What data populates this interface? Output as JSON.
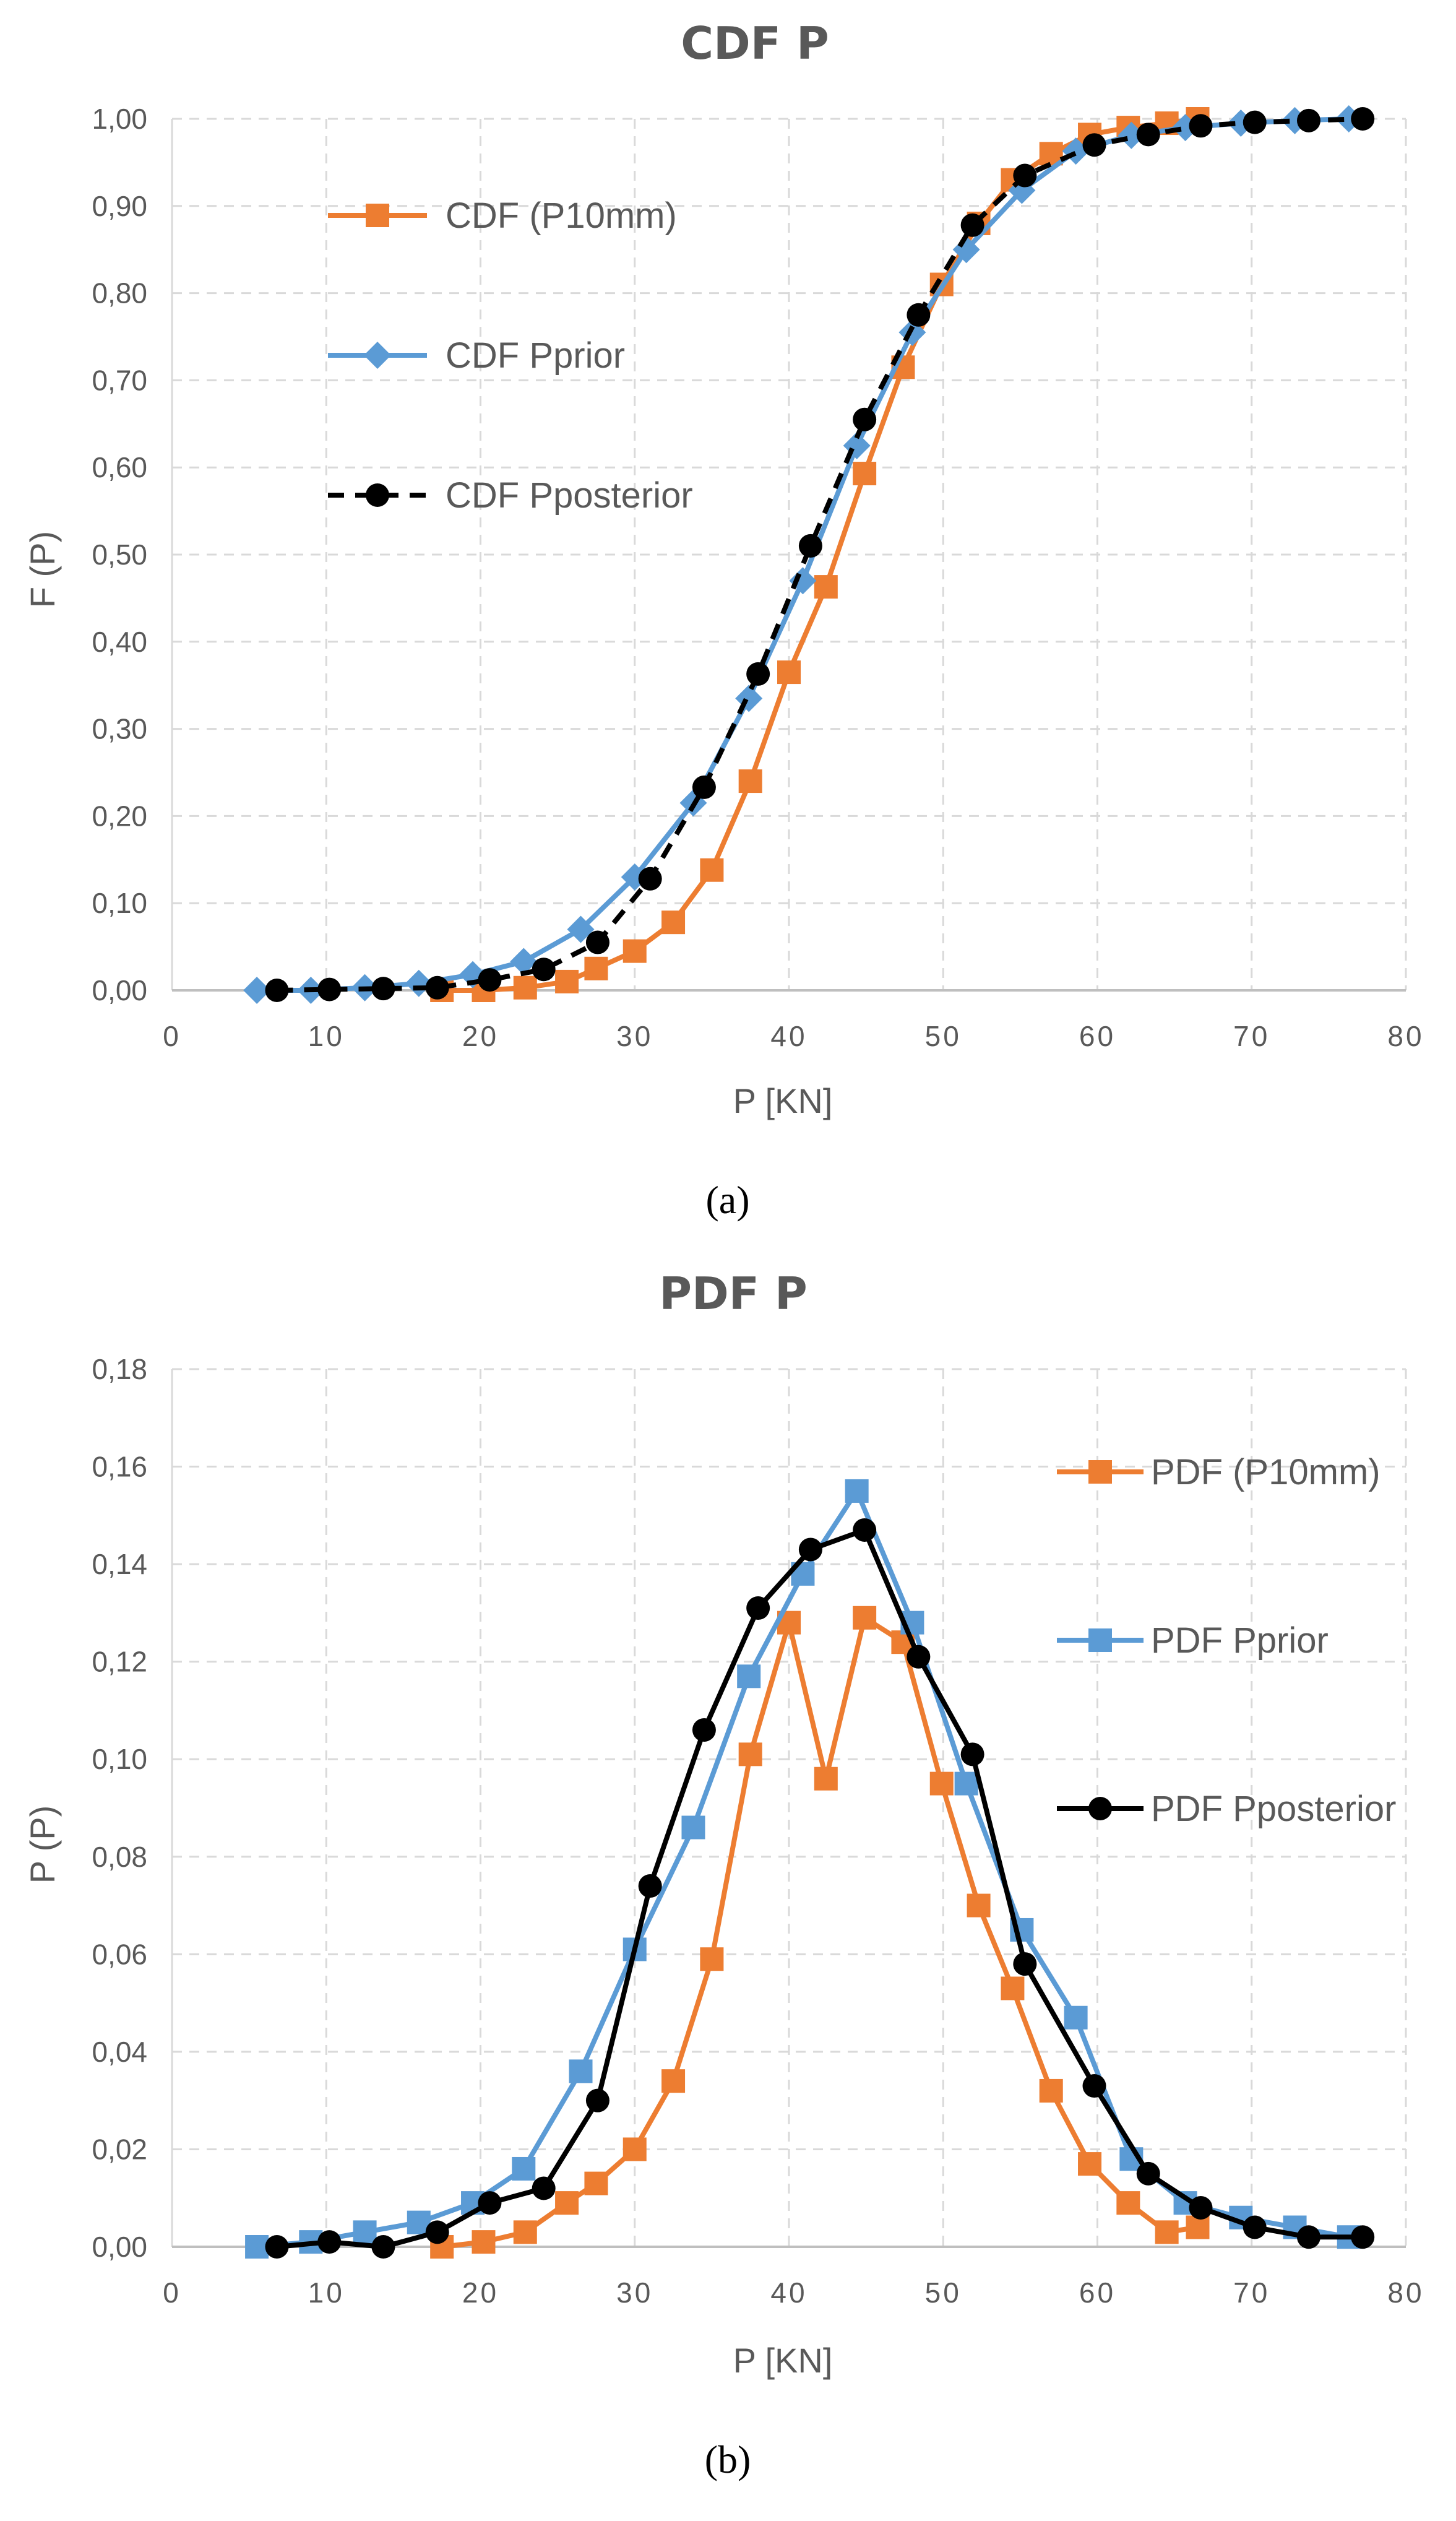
{
  "chart_data": [
    {
      "panel": "(a)",
      "type": "line",
      "title": "CDF P",
      "xlabel": "P [KN]",
      "ylabel": "F (P)",
      "xlim": [
        0,
        80
      ],
      "ylim": [
        0,
        1
      ],
      "x_ticks": [
        "0",
        "10",
        "20",
        "30",
        "40",
        "50",
        "60",
        "70",
        "80"
      ],
      "y_ticks": [
        "0,00",
        "0,10",
        "0,20",
        "0,30",
        "0,40",
        "0,50",
        "0,60",
        "0,70",
        "0,80",
        "0,90",
        "1,00"
      ],
      "grid": true,
      "legend_position": "upper-left",
      "series": [
        {
          "name": "CDF (P10mm)",
          "color": "#ED7D31",
          "marker": "square",
          "dash": "solid",
          "x": [
            17.5,
            20.2,
            22.9,
            25.6,
            27.5,
            30,
            32.5,
            35,
            37.5,
            40,
            42.4,
            44.9,
            47.4,
            49.9,
            52.3,
            54.5,
            57,
            59.5,
            62,
            64.5,
            66.5
          ],
          "y": [
            0.0,
            0.0,
            0.003,
            0.01,
            0.025,
            0.045,
            0.078,
            0.138,
            0.24,
            0.365,
            0.463,
            0.593,
            0.715,
            0.81,
            0.88,
            0.93,
            0.96,
            0.982,
            0.99,
            0.995,
            1.0
          ]
        },
        {
          "name": "CDF Pprior",
          "color": "#5B9BD5",
          "marker": "diamond",
          "dash": "solid",
          "x": [
            5.5,
            9,
            12.5,
            16,
            19.5,
            22.8,
            26.5,
            30,
            33.8,
            37.4,
            40.9,
            44.4,
            48,
            51.5,
            55.1,
            58.6,
            62.2,
            65.7,
            69.3,
            72.8,
            76.3
          ],
          "y": [
            0.0,
            0.0,
            0.003,
            0.008,
            0.018,
            0.033,
            0.07,
            0.13,
            0.215,
            0.335,
            0.47,
            0.625,
            0.755,
            0.85,
            0.918,
            0.963,
            0.981,
            0.99,
            0.995,
            0.998,
            1.0
          ]
        },
        {
          "name": "CDF Pposterior",
          "color": "#000000",
          "marker": "circle",
          "dash": "dashed",
          "x": [
            6.8,
            10.2,
            13.7,
            17.2,
            20.6,
            24.1,
            27.6,
            31,
            34.5,
            38,
            41.4,
            44.9,
            48.4,
            51.9,
            55.3,
            59.8,
            63.3,
            66.7,
            70.2,
            73.7,
            77.2
          ],
          "y": [
            0.0,
            0.001,
            0.002,
            0.003,
            0.012,
            0.024,
            0.055,
            0.128,
            0.233,
            0.363,
            0.51,
            0.655,
            0.775,
            0.878,
            0.935,
            0.97,
            0.982,
            0.992,
            0.996,
            0.998,
            1.0
          ]
        }
      ]
    },
    {
      "panel": "(b)",
      "type": "line",
      "title": "PDF P",
      "xlabel": "P [KN]",
      "ylabel": "P (P)",
      "xlim": [
        0,
        80
      ],
      "ylim": [
        0,
        0.18
      ],
      "x_ticks": [
        "0",
        "10",
        "20",
        "30",
        "40",
        "50",
        "60",
        "70",
        "80"
      ],
      "y_ticks": [
        "0,00",
        "0,02",
        "0,04",
        "0,06",
        "0,08",
        "0,10",
        "0,12",
        "0,14",
        "0,16",
        "0,18"
      ],
      "grid": true,
      "legend_position": "right",
      "series": [
        {
          "name": "PDF (P10mm)",
          "color": "#ED7D31",
          "marker": "square",
          "dash": "solid",
          "x": [
            17.5,
            20.2,
            22.9,
            25.6,
            27.5,
            30,
            32.5,
            35,
            37.5,
            40,
            42.4,
            44.9,
            47.4,
            49.9,
            52.3,
            54.5,
            57,
            59.5,
            62,
            64.5,
            66.5
          ],
          "y": [
            0.0,
            0.001,
            0.003,
            0.009,
            0.013,
            0.02,
            0.034,
            0.059,
            0.101,
            0.128,
            0.096,
            0.129,
            0.124,
            0.095,
            0.07,
            0.053,
            0.032,
            0.017,
            0.009,
            0.003,
            0.004
          ]
        },
        {
          "name": "PDF Pprior",
          "color": "#5B9BD5",
          "marker": "square",
          "dash": "solid",
          "x": [
            5.5,
            9,
            12.5,
            16,
            19.5,
            22.8,
            26.5,
            30,
            33.8,
            37.4,
            40.9,
            44.4,
            48,
            51.5,
            55.1,
            58.6,
            62.2,
            65.7,
            69.3,
            72.8,
            76.3
          ],
          "y": [
            0.0,
            0.001,
            0.003,
            0.005,
            0.009,
            0.016,
            0.036,
            0.061,
            0.086,
            0.117,
            0.138,
            0.155,
            0.128,
            0.095,
            0.065,
            0.047,
            0.018,
            0.009,
            0.006,
            0.004,
            0.002
          ]
        },
        {
          "name": "PDF Pposterior",
          "color": "#000000",
          "marker": "circle",
          "dash": "solid",
          "x": [
            6.8,
            10.2,
            13.7,
            17.2,
            20.6,
            24.1,
            27.6,
            31,
            34.5,
            38,
            41.4,
            44.9,
            48.4,
            51.9,
            55.3,
            59.8,
            63.3,
            66.7,
            70.2,
            73.7,
            77.2
          ],
          "y": [
            0.0,
            0.001,
            0.0,
            0.003,
            0.009,
            0.012,
            0.03,
            0.074,
            0.106,
            0.131,
            0.143,
            0.147,
            0.121,
            0.101,
            0.058,
            0.033,
            0.015,
            0.008,
            0.004,
            0.002,
            0.002
          ]
        }
      ]
    }
  ]
}
